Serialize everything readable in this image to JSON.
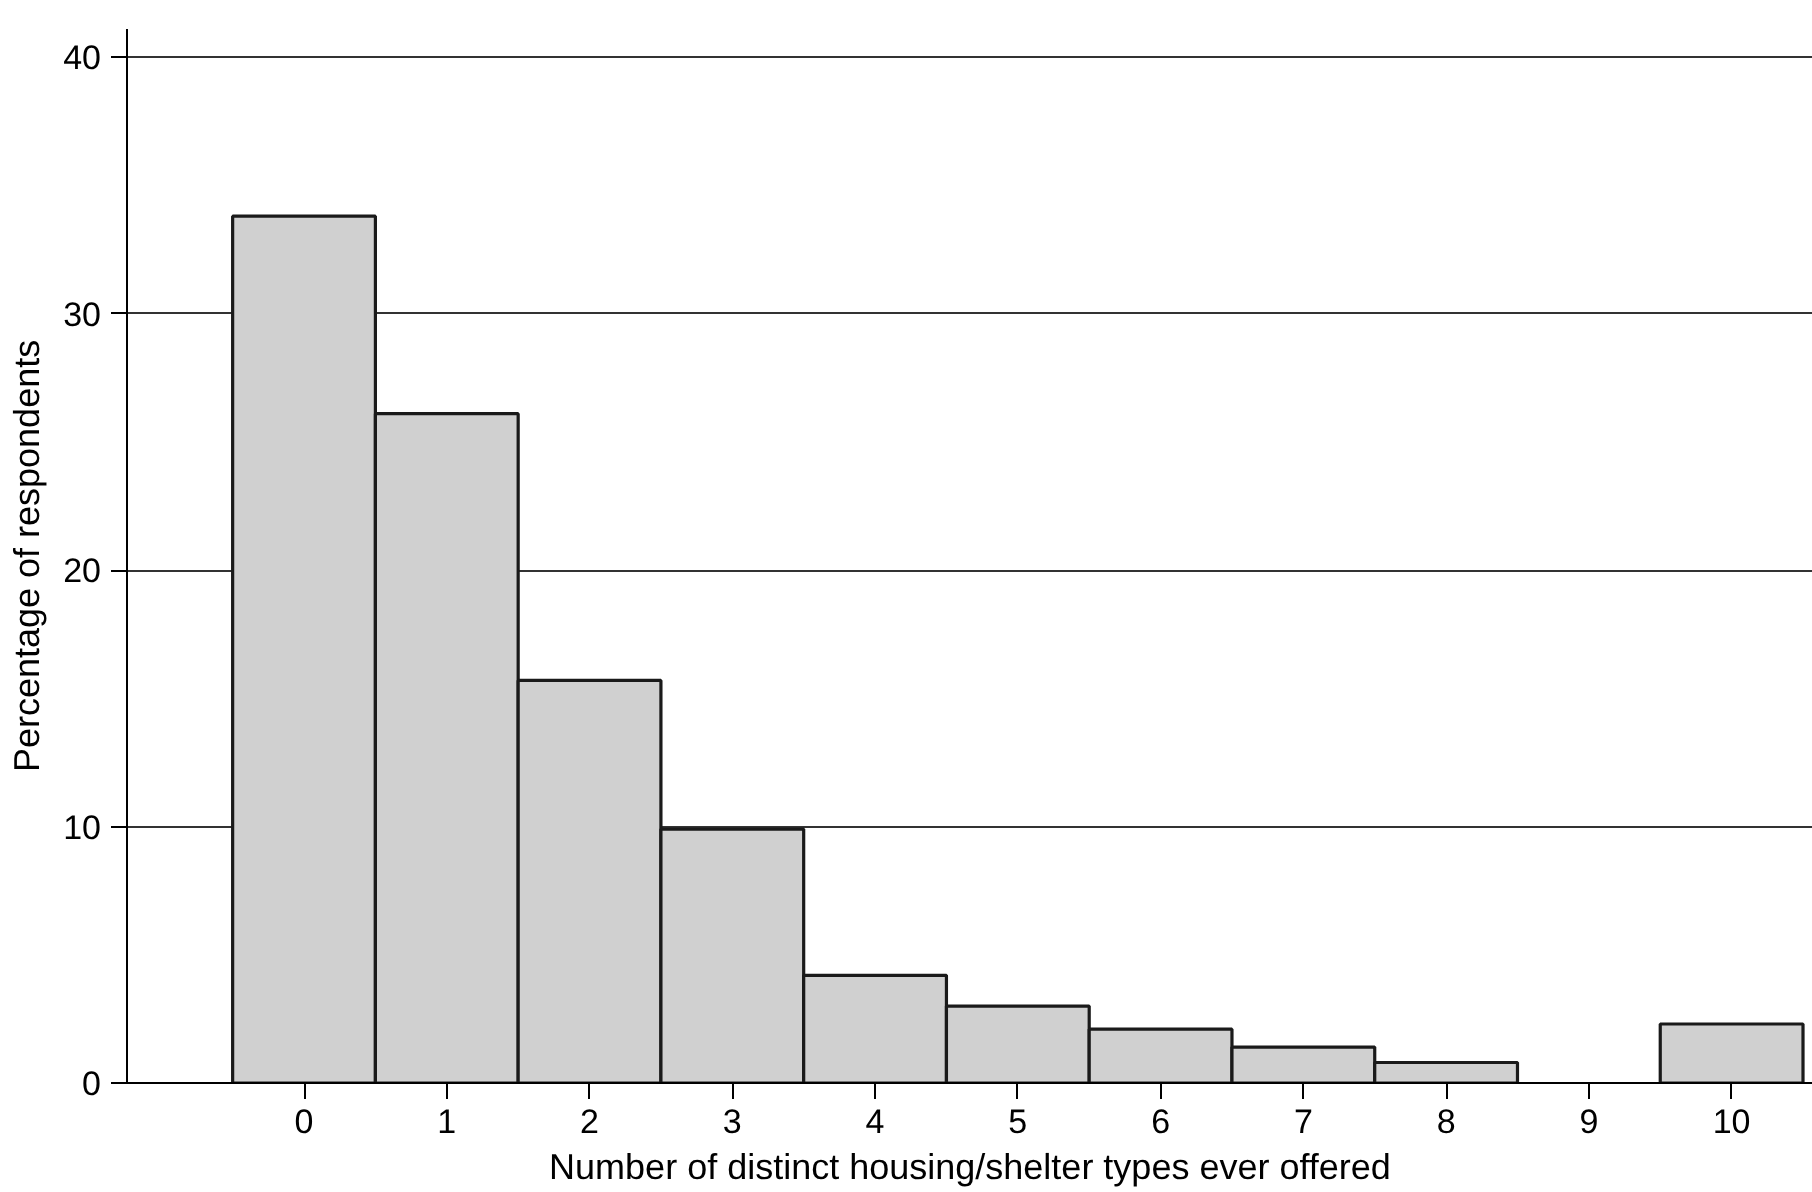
{
  "chart_data": {
    "type": "histogram",
    "xlabel": "Number of distinct housing/shelter types ever offered",
    "ylabel": "Percentage of respondents",
    "bins": [
      -0.5,
      0.5,
      1.5,
      2.5,
      3.5,
      4.5,
      5.5,
      6.5,
      7.5,
      8.5,
      9.5,
      10.5
    ],
    "values": [
      33.8,
      26.1,
      15.7,
      9.9,
      4.2,
      3.0,
      2.1,
      1.4,
      0.8,
      0,
      2.3
    ],
    "color": "#d0d0d0",
    "xlim": [
      -1.24,
      10.57
    ],
    "xticks": [
      0,
      1,
      2,
      3,
      4,
      5,
      6,
      7,
      8,
      9,
      10
    ],
    "ylim": [
      0,
      41.1
    ],
    "yticks": [
      0,
      10,
      20,
      30,
      40
    ],
    "grid": "y"
  }
}
